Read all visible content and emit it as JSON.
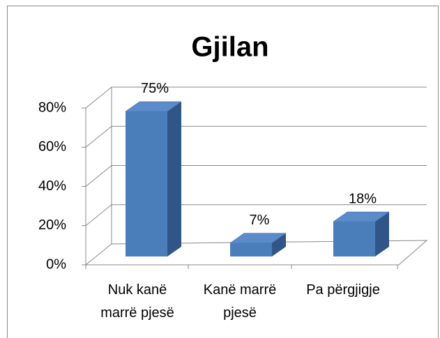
{
  "chart_data": {
    "type": "bar",
    "title": "Gjilan",
    "categories": [
      "Nuk kanë marrë pjesë",
      "Kanë marrë pjesë",
      "Pa përgjigje"
    ],
    "values": [
      75,
      7,
      18
    ],
    "value_labels": [
      "75%",
      "7%",
      "18%"
    ],
    "color": "#4a7ebb",
    "ylim": [
      0,
      80
    ],
    "yticks": [
      {
        "value": 0,
        "label": "0%"
      },
      {
        "value": 20,
        "label": "20%"
      },
      {
        "value": 40,
        "label": "40%"
      },
      {
        "value": 60,
        "label": "60%"
      },
      {
        "value": 80,
        "label": "80%"
      }
    ],
    "grid": true
  }
}
